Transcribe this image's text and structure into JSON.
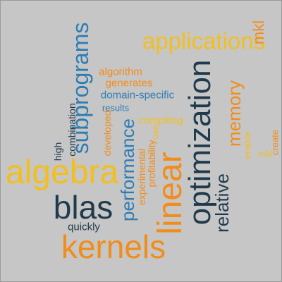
{
  "colors": {
    "background": "#c6c6c6",
    "navy": "#1f3a4d",
    "blue": "#2f7cb3",
    "orange": "#f28c1b",
    "gold": "#f2bf1e"
  },
  "words": {
    "applications": "applications",
    "mkl": "mkl",
    "subprograms": "subprograms",
    "algorithm": "algorithm",
    "generates": "generates",
    "domain_specific": "domain-specific",
    "results": "results",
    "combination": "combination",
    "high": "high",
    "developed": "developed",
    "compiling": "compiling",
    "use": "use",
    "profitability": "profitability",
    "optimization": "optimization",
    "memory": "memory",
    "enable": "enable",
    "create": "create",
    "performance": "performance",
    "experimental": "experimental",
    "algebra": "algebra",
    "linear": "linear",
    "relative": "relative",
    "blas": "blas",
    "quickly": "quickly",
    "kernels": "kernels"
  }
}
